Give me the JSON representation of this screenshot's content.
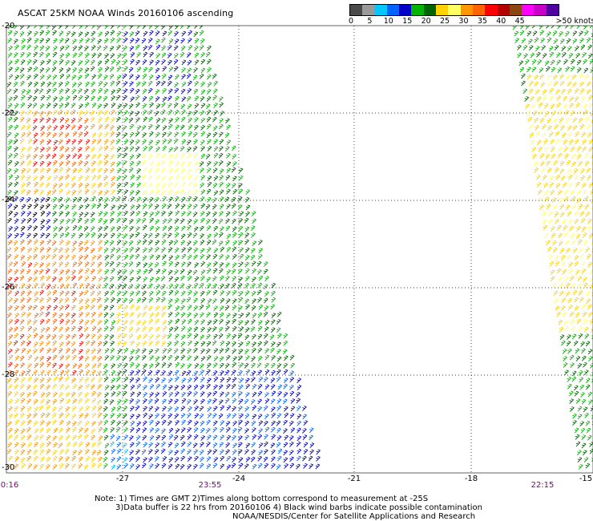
{
  "title": "ASCAT 25KM NOAA Winds 20160106 ascending",
  "colorbar": {
    "colors": [
      "#4a4a4a",
      "#9a9a9a",
      "#00c8ff",
      "#0064ff",
      "#0000c8",
      "#00b400",
      "#006400",
      "#ffd200",
      "#ffff64",
      "#ff9600",
      "#ff6400",
      "#ff0000",
      "#b40000",
      "#8c4614",
      "#ff00ff",
      "#c800c8",
      "#5000a0"
    ],
    "labels": [
      "0",
      "5",
      "10",
      "15",
      "20",
      "25",
      "30",
      "35",
      "40",
      "45",
      ">50 knots"
    ]
  },
  "axes": {
    "y_labels": [
      "-20",
      "-22",
      "-24",
      "-26",
      "-28",
      "-30"
    ],
    "x_labels": [
      "-27",
      "-24",
      "-21",
      "-18",
      "-15"
    ]
  },
  "times": [
    "0:16",
    "23:55",
    "22:15"
  ],
  "notes": [
    "Note: 1) Times are GMT 2)Times along bottom correspond to measurement at -25S",
    "3)Data buffer is 22 hrs from 20160106 4) Black wind barbs indicate possible contamination",
    "NOAA/NESDIS/Center for Satellite Applications and Research"
  ]
}
